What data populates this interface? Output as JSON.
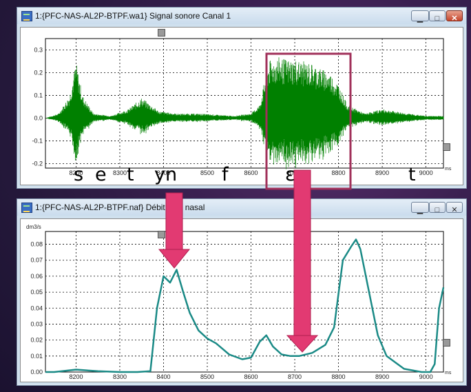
{
  "window1": {
    "title": "1:{PFC-NAS-AL2P-BTPF.wa1} Signal sonore Canal 1",
    "yticks": [
      "0.3",
      "0.2",
      "0.1",
      "0.0",
      "-0.1",
      "-0.2"
    ],
    "xticks": [
      "8200",
      "8300",
      "8400",
      "8500",
      "8600",
      "8700",
      "8800",
      "8900",
      "9000"
    ],
    "xunit": "ms"
  },
  "window2": {
    "title": "1:{PFC-NAS-AL2P-BTPF.naf} Débit d'air nasal",
    "yunit": "dm3/s",
    "yticks": [
      "0.08",
      "0.07",
      "0.06",
      "0.05",
      "0.04",
      "0.03",
      "0.02",
      "0.01",
      "0.00"
    ],
    "xticks": [
      "8200",
      "8300",
      "8400",
      "8500",
      "8600",
      "8700",
      "8800",
      "8900",
      "9000"
    ],
    "xunit": "ms"
  },
  "phonemes": [
    "s",
    "e",
    "t",
    "yn",
    "f",
    "ɛ~",
    "t"
  ],
  "colors": {
    "waveform": "#008000",
    "airflow": "#1a8a86",
    "highlight": "#a0305a",
    "arrow": "#e23a72"
  },
  "chart_data": [
    {
      "type": "line",
      "title": "",
      "xlabel": "ms",
      "ylabel": "",
      "xlim": [
        8130,
        9040
      ],
      "ylim": [
        -0.22,
        0.35
      ],
      "grid": true,
      "x": [
        8130,
        8160,
        8185,
        8200,
        8215,
        8240,
        8280,
        8320,
        8350,
        8370,
        8390,
        8430,
        8480,
        8520,
        8560,
        8600,
        8620,
        8640,
        8660,
        8680,
        8700,
        8720,
        8740,
        8760,
        8780,
        8800,
        8820,
        8860,
        8900,
        8960,
        9000,
        9040
      ],
      "series": [
        {
          "values": [
            0.0,
            0.02,
            0.1,
            0.25,
            0.1,
            0.02,
            0.01,
            0.04,
            0.09,
            0.06,
            0.03,
            0.02,
            0.02,
            0.015,
            0.01,
            0.02,
            0.06,
            0.25,
            0.27,
            0.26,
            0.26,
            0.25,
            0.24,
            0.22,
            0.2,
            0.15,
            0.06,
            0.02,
            0.04,
            0.02,
            0.01,
            0.01
          ]
        }
      ]
    },
    {
      "type": "line",
      "title": "",
      "xlabel": "ms",
      "ylabel": "dm3/s",
      "xlim": [
        8130,
        9040
      ],
      "ylim": [
        0.0,
        0.088
      ],
      "grid": true,
      "x": [
        8130,
        8150,
        8200,
        8250,
        8300,
        8340,
        8370,
        8385,
        8400,
        8415,
        8430,
        8445,
        8460,
        8480,
        8500,
        8520,
        8550,
        8580,
        8600,
        8620,
        8635,
        8650,
        8670,
        8690,
        8710,
        8740,
        8770,
        8790,
        8810,
        8830,
        8840,
        8850,
        8870,
        8890,
        8910,
        8950,
        8990,
        9000,
        9010,
        9020,
        9030,
        9040
      ],
      "series": [
        {
          "values": [
            0.0,
            0.0,
            0.0015,
            0.0005,
            0.0,
            0.0,
            0.0005,
            0.04,
            0.06,
            0.056,
            0.064,
            0.05,
            0.037,
            0.026,
            0.021,
            0.018,
            0.011,
            0.008,
            0.009,
            0.019,
            0.023,
            0.016,
            0.011,
            0.01,
            0.01,
            0.012,
            0.017,
            0.028,
            0.07,
            0.079,
            0.083,
            0.077,
            0.05,
            0.023,
            0.01,
            0.002,
            0.0,
            0.0,
            0.0,
            0.005,
            0.04,
            0.053
          ]
        }
      ]
    }
  ]
}
